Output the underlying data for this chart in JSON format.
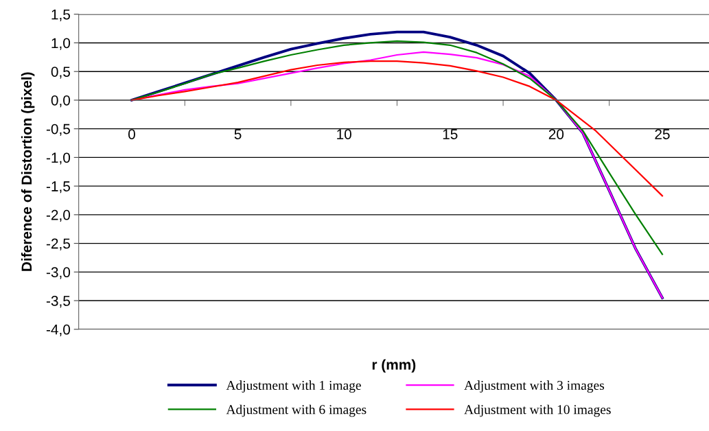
{
  "chart_data": {
    "type": "line",
    "xlabel": "r (mm)",
    "ylabel": "Diference of Distortion (pixel)",
    "x": [
      0,
      1.25,
      2.5,
      3.75,
      5,
      6.25,
      7.5,
      8.75,
      10,
      11.25,
      12.5,
      13.75,
      15,
      16.25,
      17.5,
      18.75,
      20,
      21.25,
      22.5,
      23.75,
      25
    ],
    "series": [
      {
        "name": "Adjustment with 1 image",
        "color": "#000080",
        "values": [
          0,
          0.15,
          0.3,
          0.45,
          0.6,
          0.75,
          0.89,
          0.99,
          1.08,
          1.15,
          1.19,
          1.19,
          1.1,
          0.96,
          0.77,
          0.47,
          0,
          -0.57,
          -1.58,
          -2.6,
          -3.45
        ]
      },
      {
        "name": "Adjustment with 3 images",
        "color": "#ff00ff",
        "values": [
          0,
          0.09,
          0.18,
          0.24,
          0.29,
          0.38,
          0.47,
          0.56,
          0.64,
          0.7,
          0.79,
          0.84,
          0.8,
          0.74,
          0.62,
          0.42,
          0,
          -0.57,
          -1.58,
          -2.6,
          -3.45
        ]
      },
      {
        "name": "Adjustment with 6 images",
        "color": "#008000",
        "values": [
          0,
          0.14,
          0.29,
          0.45,
          0.56,
          0.68,
          0.79,
          0.88,
          0.96,
          1.0,
          1.03,
          1.01,
          0.96,
          0.83,
          0.63,
          0.38,
          0,
          -0.53,
          -1.27,
          -2.0,
          -2.69
        ]
      },
      {
        "name": "Adjustment with 10 images",
        "color": "#ff0000",
        "x": [
          0,
          1.25,
          2.5,
          3.75,
          5,
          6.25,
          7.5,
          8.75,
          10,
          11.25,
          12.5,
          13.75,
          15,
          16.25,
          17.5,
          18.75,
          20,
          21.875,
          25
        ],
        "values": [
          0,
          0.08,
          0.15,
          0.23,
          0.31,
          0.42,
          0.53,
          0.61,
          0.66,
          0.68,
          0.68,
          0.65,
          0.6,
          0.51,
          0.4,
          0.24,
          0,
          -0.54,
          -1.67
        ]
      }
    ],
    "xlim": [
      -2.5,
      27.2
    ],
    "xticks": [
      {
        "value": 0,
        "label": "0"
      },
      {
        "value": 2.5,
        "label": null
      },
      {
        "value": 5,
        "label": "5"
      },
      {
        "value": 7.5,
        "label": null
      },
      {
        "value": 10,
        "label": "10"
      },
      {
        "value": 12.5,
        "label": null
      },
      {
        "value": 15,
        "label": "15"
      },
      {
        "value": 17.5,
        "label": null
      },
      {
        "value": 20,
        "label": "20"
      },
      {
        "value": 22.5,
        "label": null
      },
      {
        "value": 25,
        "label": "25"
      }
    ],
    "ylim": [
      -4.0,
      1.5
    ],
    "yticks": [
      {
        "value": 1.5,
        "label": "1,5"
      },
      {
        "value": 1.0,
        "label": "1,0"
      },
      {
        "value": 0.5,
        "label": "0,5"
      },
      {
        "value": 0,
        "label": "0,0"
      },
      {
        "value": -0.5,
        "label": "-0,5"
      },
      {
        "value": -1.0,
        "label": "-1,0"
      },
      {
        "value": -1.5,
        "label": "-1,5"
      },
      {
        "value": -2.0,
        "label": "-2,0"
      },
      {
        "value": -2.5,
        "label": "-2,5"
      },
      {
        "value": -3.0,
        "label": "-3,0"
      },
      {
        "value": -3.5,
        "label": "-3,5"
      },
      {
        "value": -4.0,
        "label": "-4,0"
      }
    ],
    "grid": "y",
    "legend": "bottom",
    "marker": "none",
    "line_style": "solid"
  }
}
